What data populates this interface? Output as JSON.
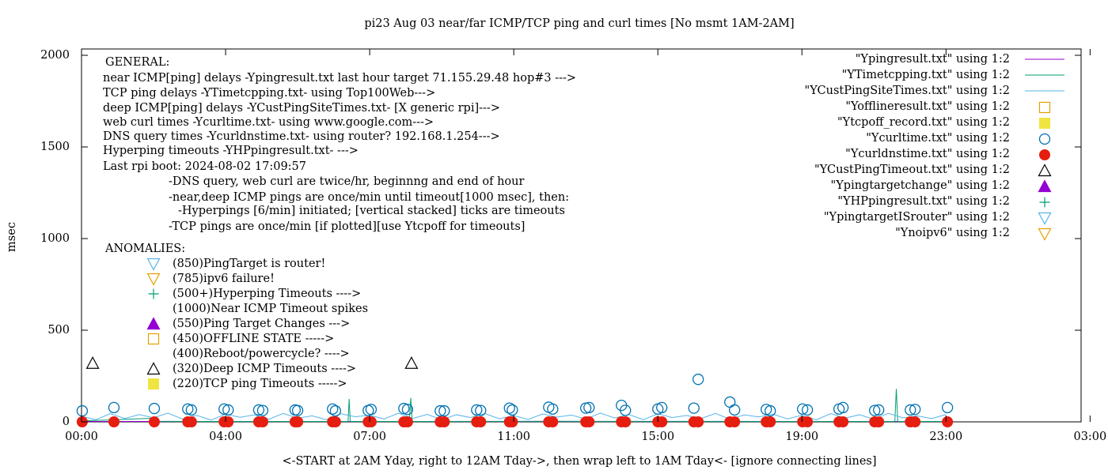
{
  "chart_data": {
    "type": "line",
    "title": "pi23 Aug 03  near/far ICMP/TCP ping and curl times [No msmt 1AM-2AM]",
    "y_label": "msec",
    "x_label": "<-START at 2AM Yday, right to 12AM Tday->, then wrap left to 1AM Tday<- [ignore connecting lines]",
    "xlim": [
      0,
      27.75
    ],
    "ylim": [
      0,
      2000
    ],
    "yticks": [
      0,
      500,
      1000,
      1500,
      2000
    ],
    "xticks": [
      {
        "value": 0,
        "label": "00:00"
      },
      {
        "value": 4,
        "label": "04:00"
      },
      {
        "value": 8,
        "label": "07:00"
      },
      {
        "value": 12,
        "label": "11:00"
      },
      {
        "value": 16,
        "label": "15:00"
      },
      {
        "value": 20,
        "label": "19:00"
      },
      {
        "value": 24,
        "label": "23:00"
      },
      {
        "value": 28,
        "label": "03:00"
      }
    ],
    "legend": "top-right",
    "series": [
      {
        "name": "\"Ypingresult.txt\" using 1:2",
        "color": "#9400d3",
        "marker": "line",
        "x": [
          0,
          24.2
        ],
        "values": [
          2,
          2
        ]
      },
      {
        "name": "\"YTimetcpping.txt\" using 1:2",
        "color": "#009e73",
        "marker": "line",
        "x": [
          0,
          0.02,
          2,
          2.05,
          3,
          7.4,
          7.43,
          7.46,
          9.1,
          9.14,
          9.18,
          13,
          22.58,
          22.62,
          22.66,
          24.2
        ],
        "values": [
          0,
          5,
          20,
          3,
          2,
          2,
          125,
          2,
          2,
          130,
          2,
          3,
          2,
          180,
          2,
          2
        ]
      },
      {
        "name": "\"YCustPingSiteTimes.txt\" using 1:2",
        "color": "#56b4e9",
        "marker": "line",
        "x": [
          0,
          0.4,
          0.8,
          1.2,
          1.6,
          2,
          2.4,
          2.8,
          3.2,
          3.6,
          4,
          4.4,
          4.8,
          5.2,
          5.6,
          6,
          6.4,
          6.8,
          7.2,
          7.6,
          8,
          8.4,
          8.8,
          9.2,
          9.6,
          10,
          10.4,
          10.8,
          11.2,
          11.6,
          12,
          12.4,
          12.8,
          13.2,
          13.6,
          14,
          14.4,
          14.8,
          15.2,
          15.6,
          16,
          16.4,
          16.8,
          17.2,
          17.6,
          18,
          18.4,
          18.8,
          19.2,
          19.6,
          20,
          20.4,
          20.8,
          21.2,
          21.6,
          22,
          22.4,
          22.8,
          23.2,
          23.6,
          24
        ],
        "values": [
          30,
          12,
          45,
          18,
          40,
          22,
          48,
          15,
          35,
          10,
          42,
          25,
          38,
          14,
          46,
          20,
          33,
          12,
          44,
          28,
          36,
          16,
          47,
          19,
          41,
          11,
          39,
          24,
          45,
          17,
          34,
          13,
          43,
          26,
          37,
          15,
          48,
          21,
          40,
          12,
          44,
          23,
          35,
          18,
          46,
          14,
          38,
          27,
          42,
          16,
          36,
          11,
          45,
          20,
          39,
          13,
          47,
          22,
          33,
          18,
          40
        ]
      },
      {
        "name": "\"Yofflineresult.txt\" using 1:2",
        "color": "#e69f00",
        "marker": "open-square",
        "x": [],
        "values": []
      },
      {
        "name": "\"Ytcpoff_record.txt\" using 1:2",
        "color": "#f0e442",
        "marker": "filled-square",
        "x": [],
        "values": []
      },
      {
        "name": "\"Ycurltime.txt\" using 1:2",
        "color": "#0072b2",
        "marker": "open-circle",
        "x": [
          0.02,
          0.9,
          2.02,
          2.95,
          3.05,
          3.96,
          4.07,
          4.92,
          5.03,
          5.93,
          6,
          6.97,
          7.05,
          7.96,
          8.04,
          8.95,
          9.05,
          9.96,
          10.07,
          10.97,
          11.08,
          11.88,
          11.96,
          12.97,
          13.08,
          14,
          14.09,
          14.99,
          15.1,
          16,
          16.11,
          17,
          17.12,
          18,
          18.13,
          19.01,
          19.12,
          20.02,
          20.15,
          21.03,
          21.14,
          22.02,
          22.13,
          23.01,
          23.14,
          24.04
        ],
        "values": [
          60,
          78,
          73,
          70,
          65,
          70,
          65,
          65,
          62,
          65,
          62,
          70,
          60,
          62,
          68,
          73,
          68,
          60,
          60,
          65,
          62,
          75,
          65,
          80,
          70,
          75,
          78,
          90,
          63,
          70,
          78,
          75,
          232,
          108,
          65,
          68,
          60,
          70,
          65,
          70,
          78,
          62,
          65,
          65,
          68,
          78
        ]
      },
      {
        "name": "\"Ycurldnstime.txt\" using 1:2",
        "color": "#e51e10",
        "marker": "filled-circle",
        "x": [
          0.02,
          0.9,
          2.02,
          2.95,
          3.05,
          3.96,
          4.07,
          4.92,
          5.03,
          5.93,
          6,
          6.97,
          7.05,
          7.96,
          8.04,
          8.95,
          9.05,
          9.96,
          10.07,
          10.97,
          11.08,
          11.88,
          11.96,
          12.97,
          13.08,
          14,
          14.09,
          14.99,
          15.1,
          16,
          16.11,
          17,
          17.12,
          18,
          18.13,
          19.01,
          19.12,
          20.02,
          20.15,
          21.03,
          21.14,
          22.02,
          22.13,
          23.01,
          23.14,
          24.04
        ],
        "values": [
          0,
          0,
          0,
          0,
          0,
          0,
          0,
          0,
          0,
          0,
          0,
          0,
          0,
          0,
          0,
          0,
          0,
          0,
          0,
          0,
          0,
          0,
          0,
          0,
          0,
          0,
          0,
          0,
          0,
          0,
          0,
          0,
          0,
          0,
          0,
          0,
          0,
          0,
          0,
          0,
          0,
          0,
          0,
          0,
          0,
          0
        ]
      },
      {
        "name": "\"YCustPingTimeout.txt\" using 1:2",
        "color": "#000000",
        "marker": "open-triangle",
        "x": [
          0.31,
          9.16
        ],
        "values": [
          320,
          320
        ]
      },
      {
        "name": "\"Ypingtargetchange\" using 1:2",
        "color": "#9400d3",
        "marker": "filled-triangle",
        "x": [],
        "values": []
      },
      {
        "name": "\"YHPpingresult.txt\" using 1:2",
        "color": "#009e73",
        "marker": "plus",
        "x": [],
        "values": []
      },
      {
        "name": "\"YpingtargetISrouter\" using 1:2",
        "color": "#56b4e9",
        "marker": "open-down-triangle",
        "x": [],
        "values": []
      },
      {
        "name": "\"Ynoipv6\" using 1:2",
        "color": "#e69f00",
        "marker": "open-down-triangle",
        "x": [],
        "values": []
      }
    ],
    "general": [
      "GENERAL:",
      "near ICMP[ping] delays -Ypingresult.txt last hour target 71.155.29.48 hop#3 --->",
      "TCP ping delays -YTimetcpping.txt- using Top100Web--->",
      "deep ICMP[ping] delays -YCustPingSiteTimes.txt- [X generic rpi]--->",
      "web curl times -Ycurltime.txt- using www.google.com--->",
      "DNS query times -Ycurldnstime.txt- using router? 192.168.1.254--->",
      "Hyperping timeouts -YHPpingresult.txt- --->",
      "Last rpi boot: 2024-08-02 17:09:57",
      "-DNS query, web curl are twice/hr, beginnng and end of hour",
      "-near,deep ICMP pings are once/min until timeout[1000 msec], then:",
      "-Hyperpings [6/min] initiated; [vertical stacked] ticks are timeouts",
      "-TCP pings are once/min [if plotted][use Ytcpoff for timeouts]"
    ],
    "anomalies_title": "ANOMALIES:",
    "anomalies": [
      {
        "text": "(850)PingTarget is router!",
        "marker": "open-down-triangle",
        "color": "#56b4e9"
      },
      {
        "text": "(785)ipv6 failure!",
        "marker": "open-down-triangle",
        "color": "#e69f00"
      },
      {
        "text": "(500+)Hyperping Timeouts ---->",
        "marker": "plus",
        "color": "#009e73"
      },
      {
        "text": "(1000)Near ICMP Timeout spikes"
      },
      {
        "text": "(550)Ping Target Changes --->",
        "marker": "filled-triangle",
        "color": "#9400d3"
      },
      {
        "text": "(450)OFFLINE STATE ----->",
        "marker": "open-square",
        "color": "#e69f00"
      },
      {
        "text": "(400)Reboot/powercycle? ---->"
      },
      {
        "text": "(320)Deep ICMP Timeouts ---->",
        "marker": "open-triangle",
        "color": "#000000"
      },
      {
        "text": "(220)TCP ping Timeouts ----->",
        "marker": "filled-square",
        "color": "#f0e442"
      }
    ]
  }
}
